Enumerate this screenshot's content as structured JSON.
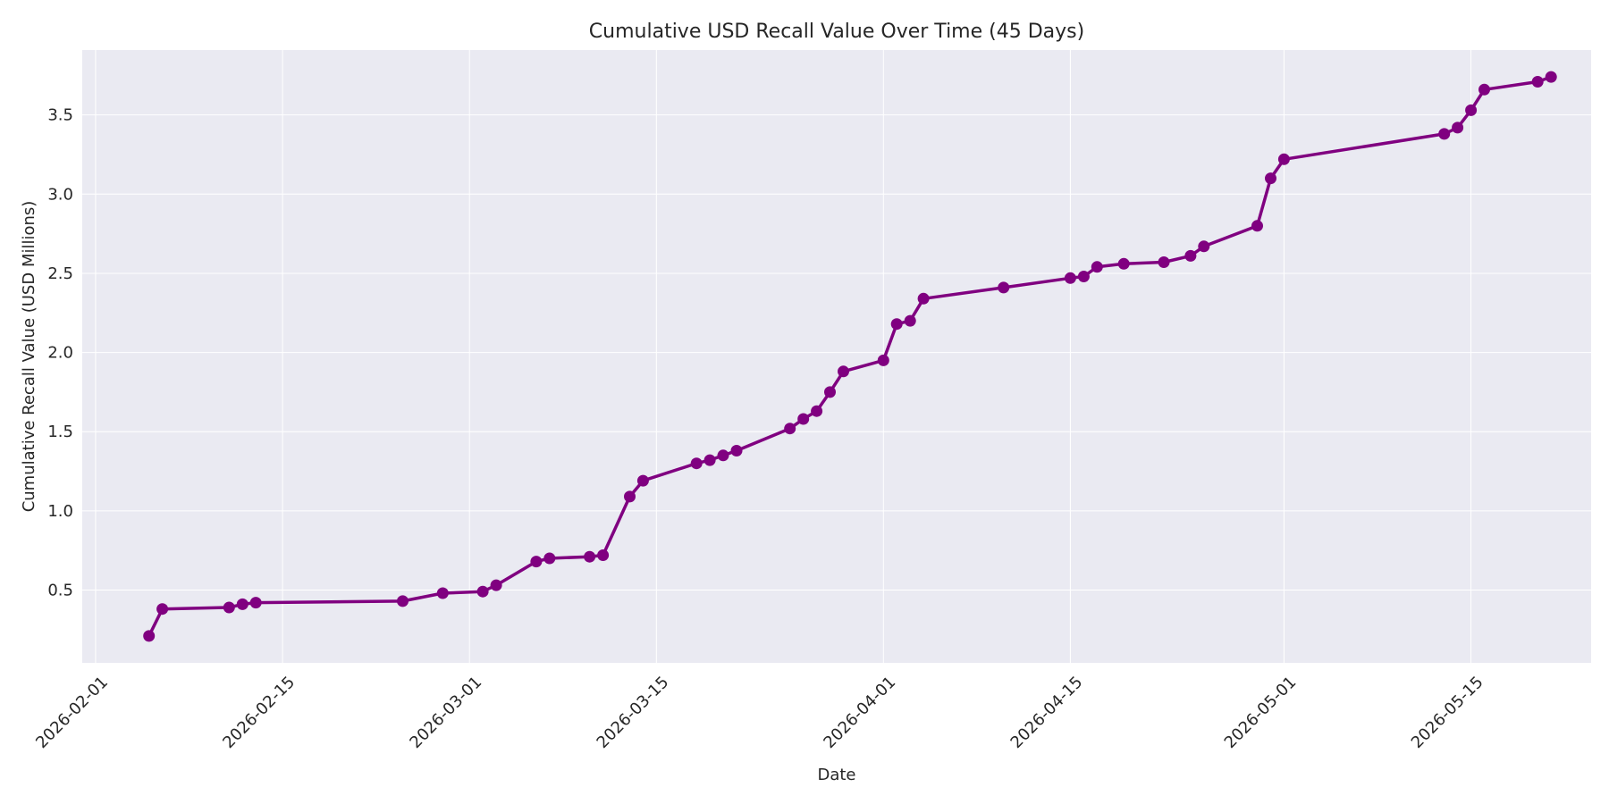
{
  "colors": {
    "plot_background": "#eaeaf2",
    "line": "#800080",
    "grid": "#ffffff"
  },
  "chart_data": {
    "type": "line",
    "title": "Cumulative USD Recall Value Over Time (45 Days)",
    "xlabel": "Date",
    "ylabel": "Cumulative Recall Value (USD Millions)",
    "x_ticks": [
      "2026-02-01",
      "2026-02-15",
      "2026-03-01",
      "2026-03-15",
      "2026-04-01",
      "2026-04-15",
      "2026-05-01",
      "2026-05-15"
    ],
    "y_ticks": [
      0.5,
      1.0,
      1.5,
      2.0,
      2.5,
      3.0,
      3.5
    ],
    "x_range": [
      "2026-01-31",
      "2026-05-24"
    ],
    "ylim": [
      0.04,
      3.91
    ],
    "grid": true,
    "x": [
      "2026-02-05",
      "2026-02-06",
      "2026-02-11",
      "2026-02-12",
      "2026-02-13",
      "2026-02-24",
      "2026-02-27",
      "2026-03-02",
      "2026-03-03",
      "2026-03-06",
      "2026-03-07",
      "2026-03-10",
      "2026-03-11",
      "2026-03-13",
      "2026-03-14",
      "2026-03-18",
      "2026-03-19",
      "2026-03-20",
      "2026-03-21",
      "2026-03-25",
      "2026-03-26",
      "2026-03-27",
      "2026-03-28",
      "2026-03-29",
      "2026-04-01",
      "2026-04-02",
      "2026-04-03",
      "2026-04-04",
      "2026-04-10",
      "2026-04-15",
      "2026-04-16",
      "2026-04-17",
      "2026-04-19",
      "2026-04-22",
      "2026-04-24",
      "2026-04-25",
      "2026-04-29",
      "2026-04-30",
      "2026-05-01",
      "2026-05-13",
      "2026-05-14",
      "2026-05-15",
      "2026-05-16",
      "2026-05-20",
      "2026-05-21"
    ],
    "series": [
      {
        "name": "",
        "values": [
          0.21,
          0.38,
          0.39,
          0.41,
          0.42,
          0.43,
          0.48,
          0.49,
          0.53,
          0.68,
          0.7,
          0.71,
          0.72,
          1.09,
          1.19,
          1.3,
          1.32,
          1.35,
          1.38,
          1.52,
          1.58,
          1.63,
          1.75,
          1.88,
          1.95,
          2.18,
          2.2,
          2.34,
          2.41,
          2.47,
          2.48,
          2.54,
          2.56,
          2.57,
          2.61,
          2.67,
          2.8,
          3.1,
          3.22,
          3.38,
          3.42,
          3.53,
          3.66,
          3.71,
          3.74
        ]
      }
    ]
  }
}
